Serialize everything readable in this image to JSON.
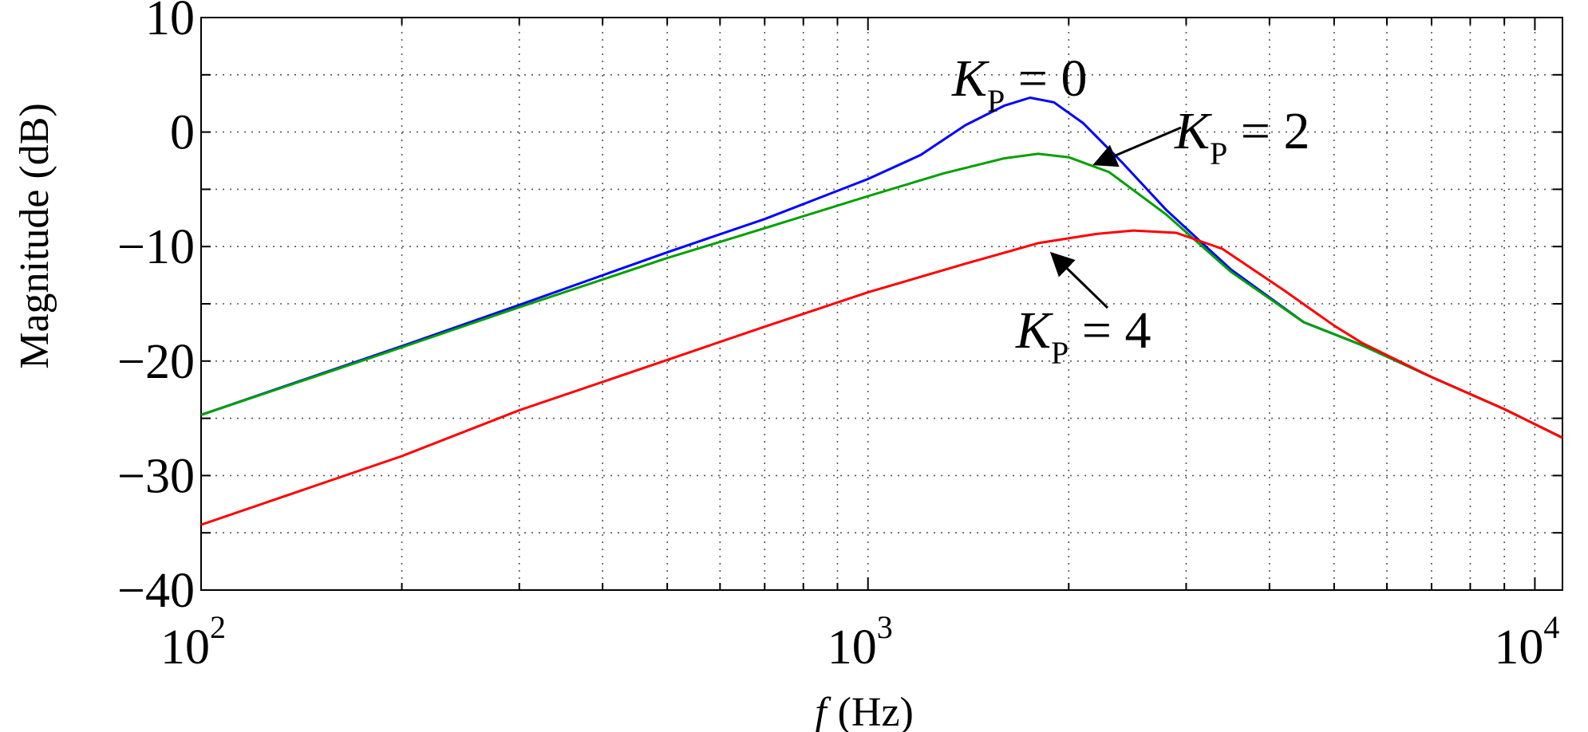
{
  "chart_data": {
    "type": "line",
    "xscale": "log",
    "xlim": [
      100,
      11000
    ],
    "ylim": [
      -40,
      10
    ],
    "grid": true,
    "xlabel": {
      "var": "f",
      "unit": "(Hz)"
    },
    "ylabel": "Magnitude (dB)",
    "xticks": [
      {
        "value": 100,
        "base": "10",
        "exp": "2"
      },
      {
        "value": 1000,
        "base": "10",
        "exp": "3"
      },
      {
        "value": 10000,
        "base": "10",
        "exp": "4"
      }
    ],
    "yticks": [
      {
        "value": 10,
        "label": "10"
      },
      {
        "value": 0,
        "label": "0"
      },
      {
        "value": -10,
        "label": "−10"
      },
      {
        "value": -20,
        "label": "−20"
      },
      {
        "value": -30,
        "label": "−30"
      },
      {
        "value": -40,
        "label": "−40"
      }
    ],
    "series": [
      {
        "key": "kp0",
        "color": "#0000ff",
        "points": [
          [
            100,
            -24.7
          ],
          [
            200,
            -18.7
          ],
          [
            300,
            -15.1
          ],
          [
            500,
            -10.5
          ],
          [
            700,
            -7.6
          ],
          [
            1000,
            -4.1
          ],
          [
            1200,
            -2.0
          ],
          [
            1400,
            0.6
          ],
          [
            1600,
            2.3
          ],
          [
            1750,
            3.0
          ],
          [
            1900,
            2.6
          ],
          [
            2100,
            0.8
          ],
          [
            2400,
            -2.6
          ],
          [
            2800,
            -6.8
          ],
          [
            3500,
            -12.0
          ],
          [
            4500,
            -16.6
          ],
          [
            5500,
            -18.6
          ],
          [
            7000,
            -21.4
          ],
          [
            9000,
            -24.2
          ],
          [
            11000,
            -26.7
          ]
        ]
      },
      {
        "key": "kp2",
        "color": "#00a000",
        "points": [
          [
            100,
            -24.7
          ],
          [
            200,
            -18.8
          ],
          [
            300,
            -15.3
          ],
          [
            500,
            -11.0
          ],
          [
            700,
            -8.4
          ],
          [
            1000,
            -5.6
          ],
          [
            1300,
            -3.6
          ],
          [
            1600,
            -2.3
          ],
          [
            1800,
            -1.9
          ],
          [
            2000,
            -2.2
          ],
          [
            2300,
            -3.5
          ],
          [
            2800,
            -7.2
          ],
          [
            3500,
            -12.2
          ],
          [
            4500,
            -16.6
          ],
          [
            5500,
            -18.6
          ],
          [
            7000,
            -21.4
          ],
          [
            9000,
            -24.2
          ],
          [
            11000,
            -26.7
          ]
        ]
      },
      {
        "key": "kp4",
        "color": "#ff0000",
        "points": [
          [
            100,
            -34.3
          ],
          [
            200,
            -28.3
          ],
          [
            300,
            -24.3
          ],
          [
            500,
            -19.9
          ],
          [
            700,
            -17.0
          ],
          [
            1000,
            -14.0
          ],
          [
            1400,
            -11.5
          ],
          [
            1800,
            -9.7
          ],
          [
            2200,
            -8.9
          ],
          [
            2500,
            -8.6
          ],
          [
            2900,
            -8.8
          ],
          [
            3400,
            -10.2
          ],
          [
            4200,
            -13.8
          ],
          [
            5000,
            -16.9
          ],
          [
            5500,
            -18.4
          ],
          [
            7000,
            -21.4
          ],
          [
            9000,
            -24.2
          ],
          [
            11000,
            -26.7
          ]
        ]
      }
    ],
    "annotations": [
      {
        "key": "kp0",
        "var": "K",
        "sub": "P",
        "rest": " = 0"
      },
      {
        "key": "kp2",
        "var": "K",
        "sub": "P",
        "rest": " = 2"
      },
      {
        "key": "kp4",
        "var": "K",
        "sub": "P",
        "rest": " = 4"
      }
    ]
  }
}
